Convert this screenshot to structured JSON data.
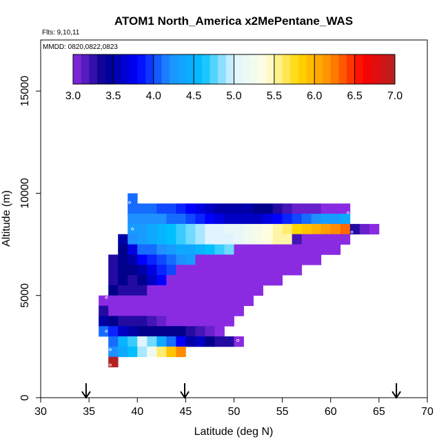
{
  "chart_data": {
    "type": "heatmap",
    "title": "ATOM1 North_America x2MePentane_WAS",
    "flights_label": "Flts: 9,10,11",
    "dates_label": "MMDD: 0820,0822,0823",
    "xlabel": "Latitude (deg N)",
    "ylabel": "Altitude (m)",
    "xlim": [
      30,
      70
    ],
    "ylim": [
      0,
      17500
    ],
    "x_ticks": [
      "30",
      "35",
      "40",
      "45",
      "50",
      "55",
      "60",
      "65",
      "70"
    ],
    "y_ticks": [
      "0",
      "5000",
      "10000",
      "15000"
    ],
    "colorbar": {
      "min": 3.0,
      "max": 7.0,
      "ticks": [
        "3.0",
        "3.5",
        "4.0",
        "4.5",
        "5.0",
        "5.5",
        "6.0",
        "6.5",
        "7.0"
      ],
      "colors": [
        "#8a2be2",
        "#00008b",
        "#0000ff",
        "#1e90ff",
        "#00bfff",
        "#e0f4ff",
        "#ffffe0",
        "#ffd700",
        "#ff8c00",
        "#ff0000",
        "#b22222"
      ]
    },
    "arrows_latitude": [
      34.7,
      44.9,
      66.8
    ],
    "rows": [
      {
        "alt": 9500,
        "lat0": 39,
        "lat1": 40,
        "values": [
          4.1
        ]
      },
      {
        "alt": 9000,
        "lat0": 39,
        "lat1": 62,
        "values": [
          4.1,
          4.1,
          4.1,
          4.0,
          4.0,
          3.9,
          3.8,
          3.7,
          3.6,
          3.5,
          3.5,
          3.5,
          3.5,
          3.4,
          3.4,
          3.3,
          3.2,
          3.1,
          3.1,
          3.1,
          3.0,
          3.0,
          3.0
        ]
      },
      {
        "alt": 8500,
        "lat0": 39,
        "lat1": 62,
        "values": [
          4.2,
          4.2,
          4.2,
          4.2,
          4.1,
          4.1,
          4.0,
          3.9,
          3.8,
          3.7,
          3.6,
          3.6,
          3.6,
          3.6,
          3.7,
          3.8,
          3.9,
          4.0,
          4.1,
          4.2,
          4.3,
          4.3,
          4.4
        ]
      },
      {
        "alt": 8000,
        "lat0": 39,
        "lat1": 65,
        "values": [
          4.3,
          4.3,
          4.4,
          4.5,
          4.6,
          4.7,
          4.8,
          4.9,
          5.0,
          5.0,
          5.1,
          5.1,
          5.2,
          5.3,
          5.4,
          5.5,
          5.6,
          5.8,
          5.9,
          6.0,
          6.1,
          6.2,
          6.3,
          3.3,
          3.1,
          3.0
        ]
      },
      {
        "alt": 7500,
        "lat0": 38,
        "lat1": 62,
        "values": [
          3.5,
          4.2,
          4.3,
          4.4,
          4.5,
          4.6,
          4.7,
          4.8,
          4.9,
          5.0,
          5.0,
          5.0,
          5.1,
          5.2,
          5.3,
          5.4,
          5.5,
          5.5,
          3.2,
          3.0,
          3.0,
          3.0,
          3.0,
          3.0
        ]
      },
      {
        "alt": 7000,
        "lat0": 38,
        "lat1": 61,
        "values": [
          3.4,
          3.7,
          4.1,
          4.1,
          4.2,
          4.3,
          4.4,
          4.4,
          4.5,
          4.6,
          4.7,
          4.8,
          3.0,
          3.0,
          3.0,
          3.0,
          3.0,
          3.0,
          3.0,
          3.0,
          3.0,
          3.0,
          3.0
        ]
      },
      {
        "alt": 6500,
        "lat0": 37,
        "lat1": 59,
        "values": [
          3.3,
          3.4,
          3.5,
          3.8,
          3.9,
          4.0,
          4.1,
          4.2,
          4.3,
          3.0,
          3.0,
          3.0,
          3.0,
          3.0,
          3.0,
          3.0,
          3.0,
          3.0,
          3.0,
          3.0,
          3.0,
          3.0
        ]
      },
      {
        "alt": 6000,
        "lat0": 37,
        "lat1": 57,
        "values": [
          3.3,
          3.4,
          3.4,
          3.5,
          3.7,
          3.9,
          4.0,
          3.0,
          3.0,
          3.0,
          3.0,
          3.0,
          3.0,
          3.0,
          3.0,
          3.0,
          3.0,
          3.0,
          3.0,
          3.0
        ]
      },
      {
        "alt": 5500,
        "lat0": 37,
        "lat1": 55,
        "values": [
          3.3,
          3.4,
          3.3,
          3.4,
          3.6,
          3.8,
          3.0,
          3.0,
          3.0,
          3.0,
          3.0,
          3.0,
          3.0,
          3.0,
          3.0,
          3.0,
          3.0,
          3.0
        ]
      },
      {
        "alt": 5000,
        "lat0": 37,
        "lat1": 53,
        "values": [
          3.4,
          3.3,
          3.3,
          3.3,
          3.0,
          3.0,
          3.0,
          3.0,
          3.0,
          3.0,
          3.0,
          3.0,
          3.0,
          3.0,
          3.0,
          3.0
        ]
      },
      {
        "alt": 4500,
        "lat0": 36,
        "lat1": 52,
        "values": [
          3.0,
          3.0,
          3.0,
          3.0,
          3.0,
          3.0,
          3.0,
          3.0,
          3.0,
          3.0,
          3.0,
          3.0,
          3.0,
          3.0,
          3.0,
          3.0
        ]
      },
      {
        "alt": 4000,
        "lat0": 36,
        "lat1": 51,
        "values": [
          3.3,
          3.0,
          3.0,
          3.0,
          3.0,
          3.0,
          3.0,
          3.0,
          3.0,
          3.0,
          3.0,
          3.0,
          3.0,
          3.0,
          3.0
        ]
      },
      {
        "alt": 3500,
        "lat0": 36,
        "lat1": 50,
        "values": [
          3.5,
          3.4,
          3.3,
          3.3,
          3.3,
          3.2,
          3.1,
          3.0,
          3.0,
          3.0,
          3.0,
          3.0,
          3.0,
          3.0
        ]
      },
      {
        "alt": 3000,
        "lat0": 36,
        "lat1": 49,
        "values": [
          4.1,
          3.9,
          3.6,
          3.5,
          3.4,
          3.4,
          3.4,
          3.4,
          3.4,
          3.3,
          3.2,
          3.1,
          3.0
        ]
      },
      {
        "alt": 2500,
        "lat0": 37,
        "lat1": 51,
        "values": [
          4.1,
          4.5,
          4.7,
          5.0,
          4.8,
          4.4,
          4.1,
          3.8,
          3.5,
          3.6,
          3.4,
          3.3,
          3.3,
          3.0
        ]
      },
      {
        "alt": 2000,
        "lat0": 37,
        "lat1": 45,
        "values": [
          4.2,
          4.4,
          4.6,
          4.9,
          5.2,
          5.6,
          5.9,
          6.2
        ]
      },
      {
        "alt": 1500,
        "lat0": 37,
        "lat1": 38,
        "values": [
          7.0
        ]
      }
    ]
  }
}
